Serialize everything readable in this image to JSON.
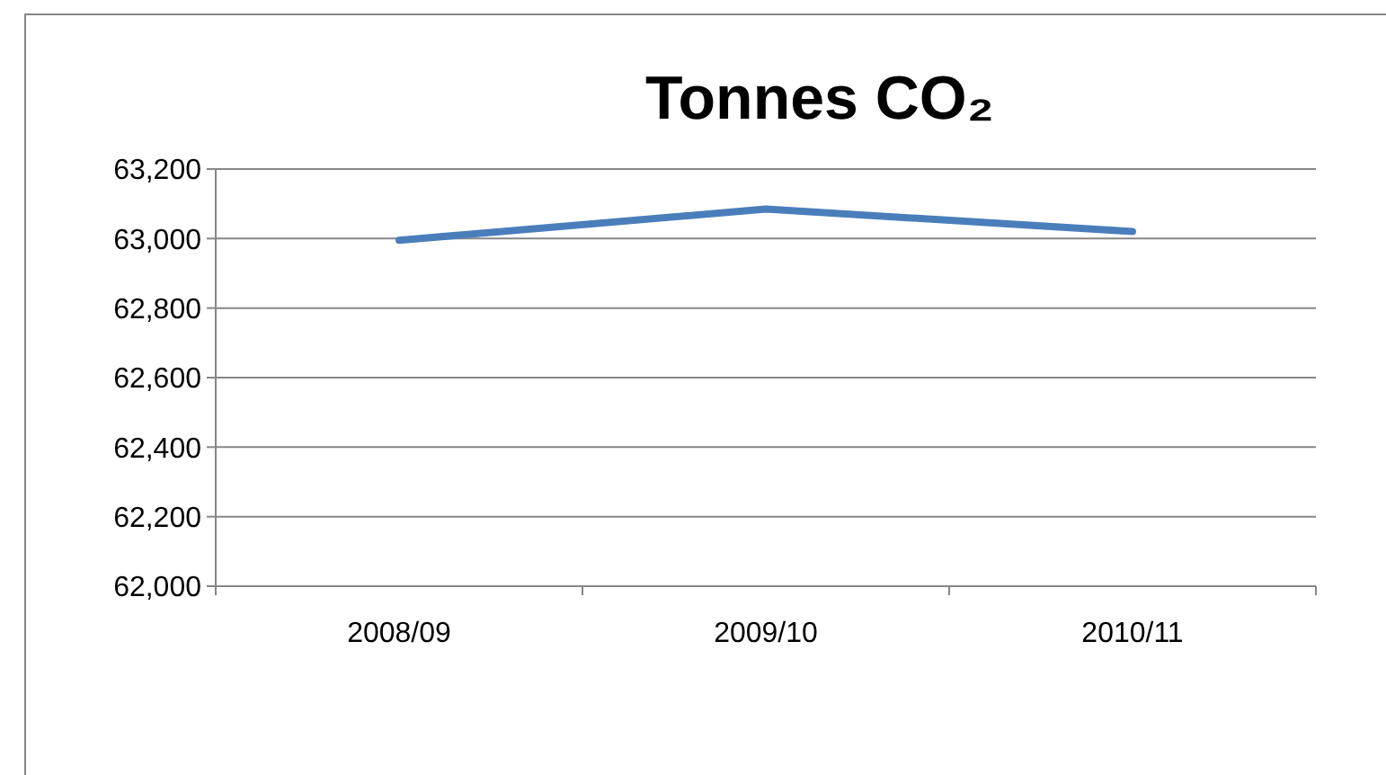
{
  "chart_data": {
    "type": "line",
    "title": "Tonnes CO₂",
    "categories": [
      "2008/09",
      "2009/10",
      "2010/11"
    ],
    "series": [
      {
        "color": "#4a7ebb",
        "values": [
          62995,
          63085,
          63020
        ]
      }
    ],
    "ylim": [
      62000,
      63200
    ],
    "yticks": [
      {
        "value": 62000,
        "label": "62,000"
      },
      {
        "value": 62200,
        "label": "62,200"
      },
      {
        "value": 62400,
        "label": "62,400"
      },
      {
        "value": 62600,
        "label": "62,600"
      },
      {
        "value": 62800,
        "label": "62,800"
      },
      {
        "value": 63000,
        "label": "63,000"
      },
      {
        "value": 63200,
        "label": "63,200"
      }
    ],
    "grid": "y",
    "marker": "none",
    "line_style": "solid"
  }
}
